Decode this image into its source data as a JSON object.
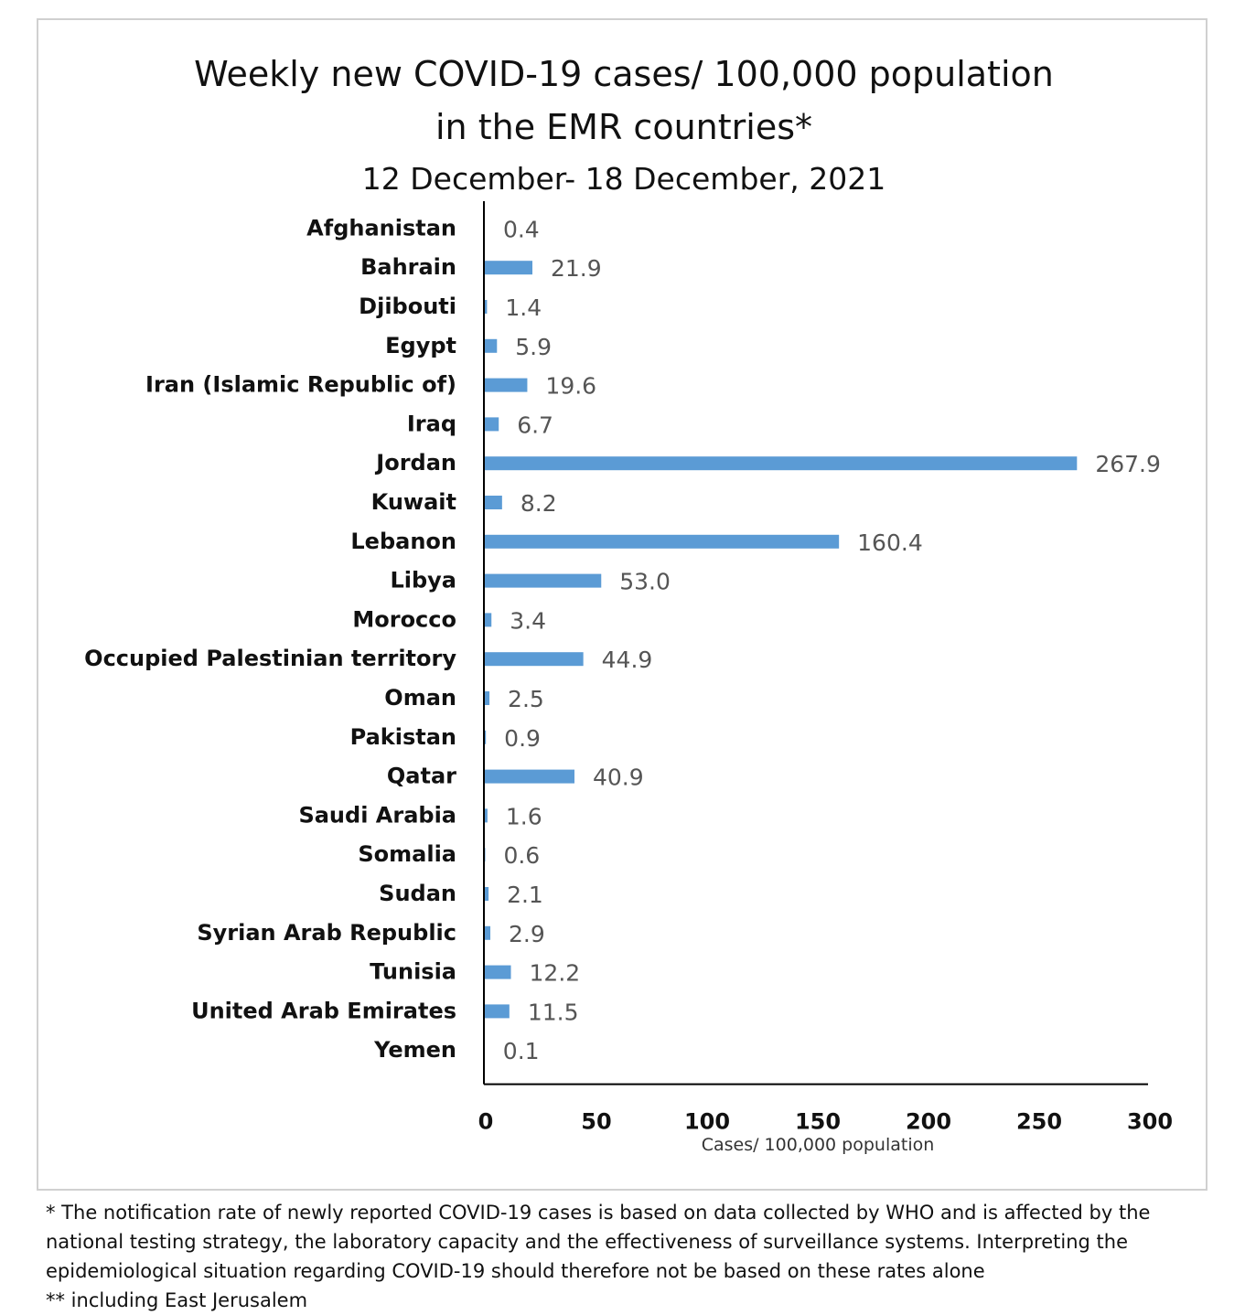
{
  "chart_data": {
    "type": "bar",
    "orientation": "horizontal",
    "title": "Weekly new COVID-19 cases/ 100,000 population",
    "title_line2": "in the EMR countries*",
    "subtitle": "12 December- 18 December, 2021",
    "xlabel": "Cases/ 100,000 population",
    "ylabel": "",
    "xlim": [
      0,
      300
    ],
    "xticks": [
      "0",
      "50",
      "100",
      "150",
      "200",
      "250",
      "300"
    ],
    "grid": false,
    "legend": "none",
    "bar_color": "#5b9bd5",
    "categories": [
      "Afghanistan",
      "Bahrain",
      "Djibouti",
      "Egypt",
      "Iran (Islamic Republic of)",
      "Iraq",
      "Jordan",
      "Kuwait",
      "Lebanon",
      "Libya",
      "Morocco",
      "Occupied Palestinian territory",
      "Oman",
      "Pakistan",
      "Qatar",
      "Saudi Arabia",
      "Somalia",
      "Sudan",
      "Syrian Arab Republic",
      "Tunisia",
      "United Arab Emirates",
      "Yemen"
    ],
    "values": [
      0.4,
      21.9,
      1.4,
      5.9,
      19.6,
      6.7,
      267.9,
      8.2,
      160.4,
      53.0,
      3.4,
      44.9,
      2.5,
      0.9,
      40.9,
      1.6,
      0.6,
      2.1,
      2.9,
      12.2,
      11.5,
      0.1
    ],
    "value_labels": [
      "0.4",
      "21.9",
      "1.4",
      "5.9",
      "19.6",
      "6.7",
      "267.9",
      "8.2",
      "160.4",
      "53.0",
      "3.4",
      "44.9",
      "2.5",
      "0.9",
      "40.9",
      "1.6",
      "0.6",
      "2.1",
      "2.9",
      "12.2",
      "11.5",
      "0.1"
    ]
  },
  "footnotes": {
    "line1": "* The notification rate of newly reported COVID-19 cases is based on data collected by WHO and is affected by the",
    "line2": "national testing strategy, the laboratory capacity and the effectiveness of surveillance systems. Interpreting the",
    "line3": "epidemiological situation regarding COVID-19 should therefore not be based on these rates alone",
    "line4": "** including East Jerusalem"
  }
}
